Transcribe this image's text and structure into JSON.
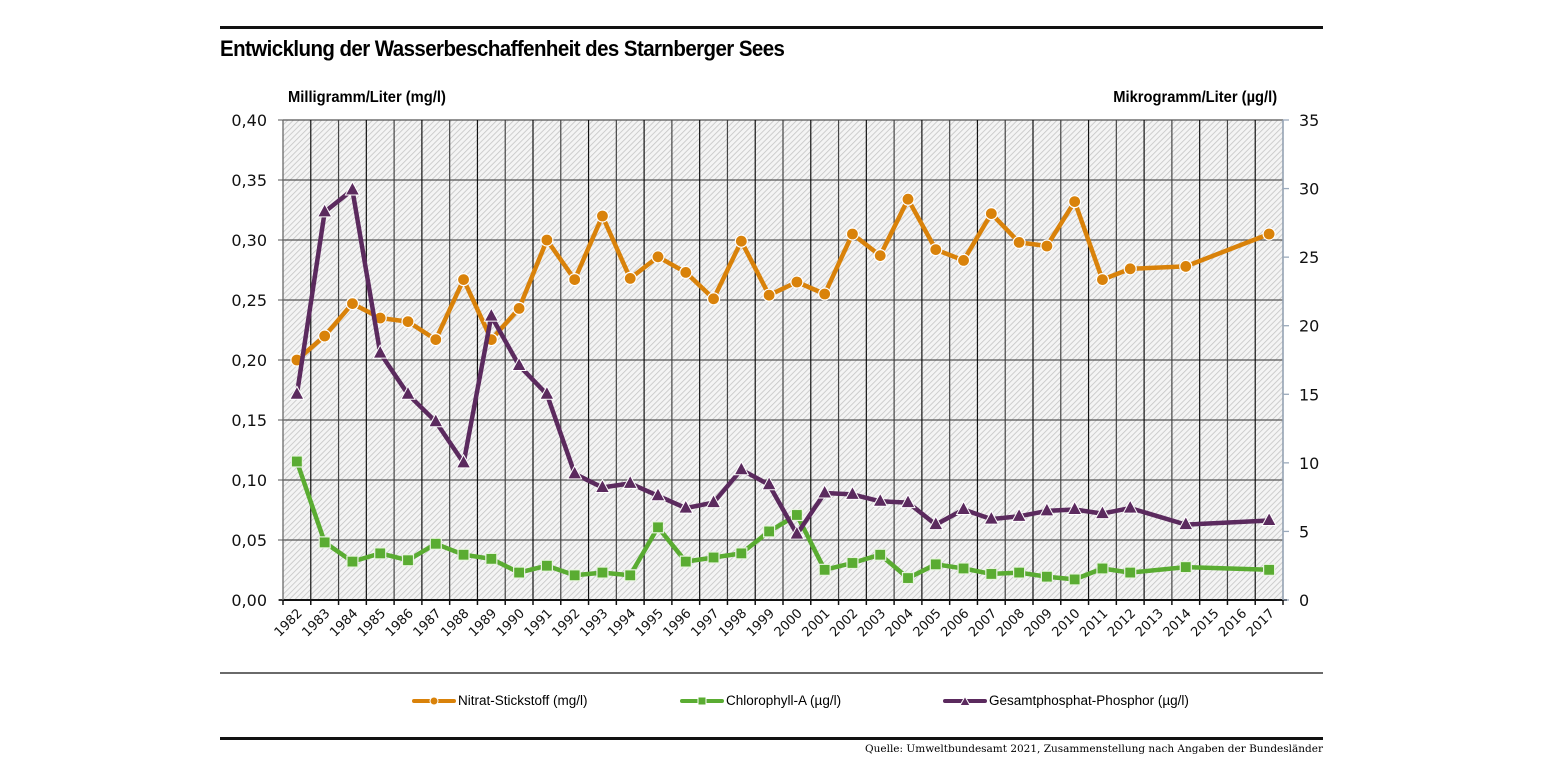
{
  "chart_data": {
    "type": "line",
    "title": "Entwicklung der Wasserbeschaffenheit des Starnberger Sees",
    "x": [
      "1982",
      "1983",
      "1984",
      "1985",
      "1986",
      "1987",
      "1988",
      "1989",
      "1990",
      "1991",
      "1992",
      "1993",
      "1994",
      "1995",
      "1996",
      "1997",
      "1998",
      "1999",
      "2000",
      "2001",
      "2002",
      "2003",
      "2004",
      "2005",
      "2006",
      "2007",
      "2008",
      "2009",
      "2010",
      "2011",
      "2012",
      "2013",
      "2014",
      "2015",
      "2016",
      "2017"
    ],
    "y_left": {
      "label": "Milligramm/Liter (mg/l)",
      "range": [
        0,
        0.4
      ],
      "ticks": [
        "0,00",
        "0,05",
        "0,10",
        "0,15",
        "0,20",
        "0,25",
        "0,30",
        "0,35",
        "0,40"
      ],
      "tick_values": [
        0,
        0.05,
        0.1,
        0.15,
        0.2,
        0.25,
        0.3,
        0.35,
        0.4
      ]
    },
    "y_right": {
      "label": "Mikrogramm/Liter (µg/l)",
      "range": [
        0,
        35
      ],
      "ticks": [
        "0",
        "5",
        "10",
        "15",
        "20",
        "25",
        "30",
        "35"
      ],
      "tick_values": [
        0,
        5,
        10,
        15,
        20,
        25,
        30,
        35
      ]
    },
    "grid": true,
    "legend_position": "bottom",
    "series": [
      {
        "name": "Nitrat-Stickstoff (mg/l)",
        "axis": "left",
        "color": "#d9820a",
        "marker": "circle",
        "values": [
          0.2,
          0.22,
          0.247,
          0.235,
          0.232,
          0.217,
          0.267,
          0.217,
          0.243,
          0.3,
          0.267,
          0.32,
          0.268,
          0.286,
          0.273,
          0.251,
          0.299,
          0.254,
          0.265,
          0.255,
          0.305,
          0.287,
          0.334,
          0.292,
          0.283,
          0.322,
          0.298,
          0.295,
          0.332,
          0.267,
          0.276,
          null,
          0.278,
          null,
          null,
          0.305
        ]
      },
      {
        "name": "Chlorophyll-A (µg/l)",
        "axis": "right",
        "color": "#5aac32",
        "marker": "square",
        "values": [
          10.1,
          4.2,
          2.8,
          3.4,
          2.9,
          4.1,
          3.3,
          3.0,
          2.0,
          2.5,
          1.8,
          2.0,
          1.8,
          5.3,
          2.8,
          3.1,
          3.4,
          5.0,
          6.2,
          2.2,
          2.7,
          3.3,
          1.6,
          2.6,
          2.3,
          1.9,
          2.0,
          1.7,
          1.5,
          2.3,
          2.0,
          null,
          2.4,
          null,
          null,
          2.2
        ]
      },
      {
        "name": "Gesamtphosphat-Phosphor (µg/l)",
        "axis": "right",
        "color": "#5b2a5e",
        "marker": "triangle",
        "values": [
          15.0,
          28.3,
          29.9,
          18.0,
          15.0,
          13.0,
          10.0,
          20.7,
          17.1,
          15.0,
          9.2,
          8.2,
          8.5,
          7.6,
          6.7,
          7.1,
          9.5,
          8.4,
          4.8,
          7.8,
          7.7,
          7.2,
          7.1,
          5.5,
          6.6,
          5.9,
          6.1,
          6.5,
          6.6,
          6.3,
          6.7,
          null,
          5.5,
          null,
          null,
          5.8
        ]
      }
    ]
  },
  "source": "Quelle: Umweltbundesamt 2021, Zusammenstellung nach Angaben der Bundesländer"
}
